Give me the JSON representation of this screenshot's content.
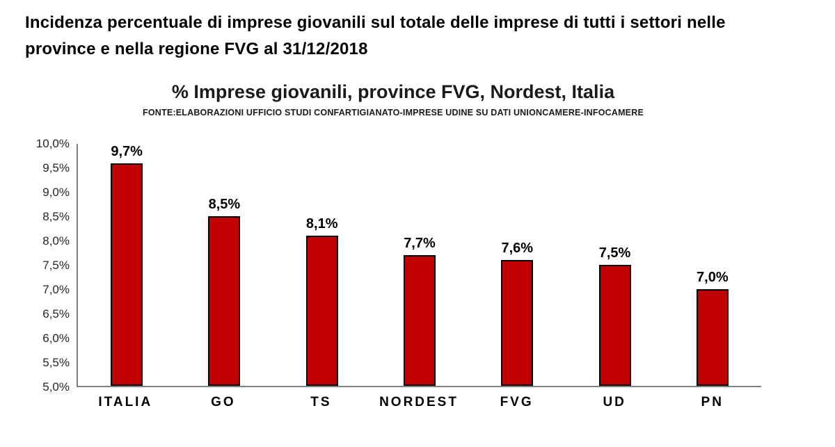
{
  "page_title": "Incidenza percentuale di imprese giovanili sul totale delle imprese di tutti i settori nelle province e nella regione FVG al 31/12/2018",
  "chart_data": {
    "type": "bar",
    "title": "% Imprese giovanili, province FVG, Nordest, Italia",
    "source": "FONTE:ELABORAZIONI UFFICIO STUDI CONFARTIGIANATO-IMPRESE UDINE SU DATI UNIONCAMERE-INFOCAMERE",
    "categories": [
      "ITALIA",
      "GO",
      "TS",
      "NORDEST",
      "FVG",
      "UD",
      "PN"
    ],
    "values": [
      9.7,
      8.5,
      8.1,
      7.7,
      7.6,
      7.5,
      7.0
    ],
    "value_labels": [
      "9,7%",
      "8,5%",
      "8,1%",
      "7,7%",
      "7,6%",
      "7,5%",
      "7,0%"
    ],
    "xlabel": "",
    "ylabel": "",
    "ylim": [
      5.0,
      10.0
    ],
    "y_ticks": [
      5.0,
      5.5,
      6.0,
      6.5,
      7.0,
      7.5,
      8.0,
      8.5,
      9.0,
      9.5,
      10.0
    ],
    "y_tick_labels": [
      "5,0%",
      "5,5%",
      "6,0%",
      "6,5%",
      "7,0%",
      "7,5%",
      "8,0%",
      "8,5%",
      "9,0%",
      "9,5%",
      "10,0%"
    ],
    "grid": false,
    "legend": "none",
    "bar_color": "#C00000",
    "bar_border_color": "#000000"
  }
}
